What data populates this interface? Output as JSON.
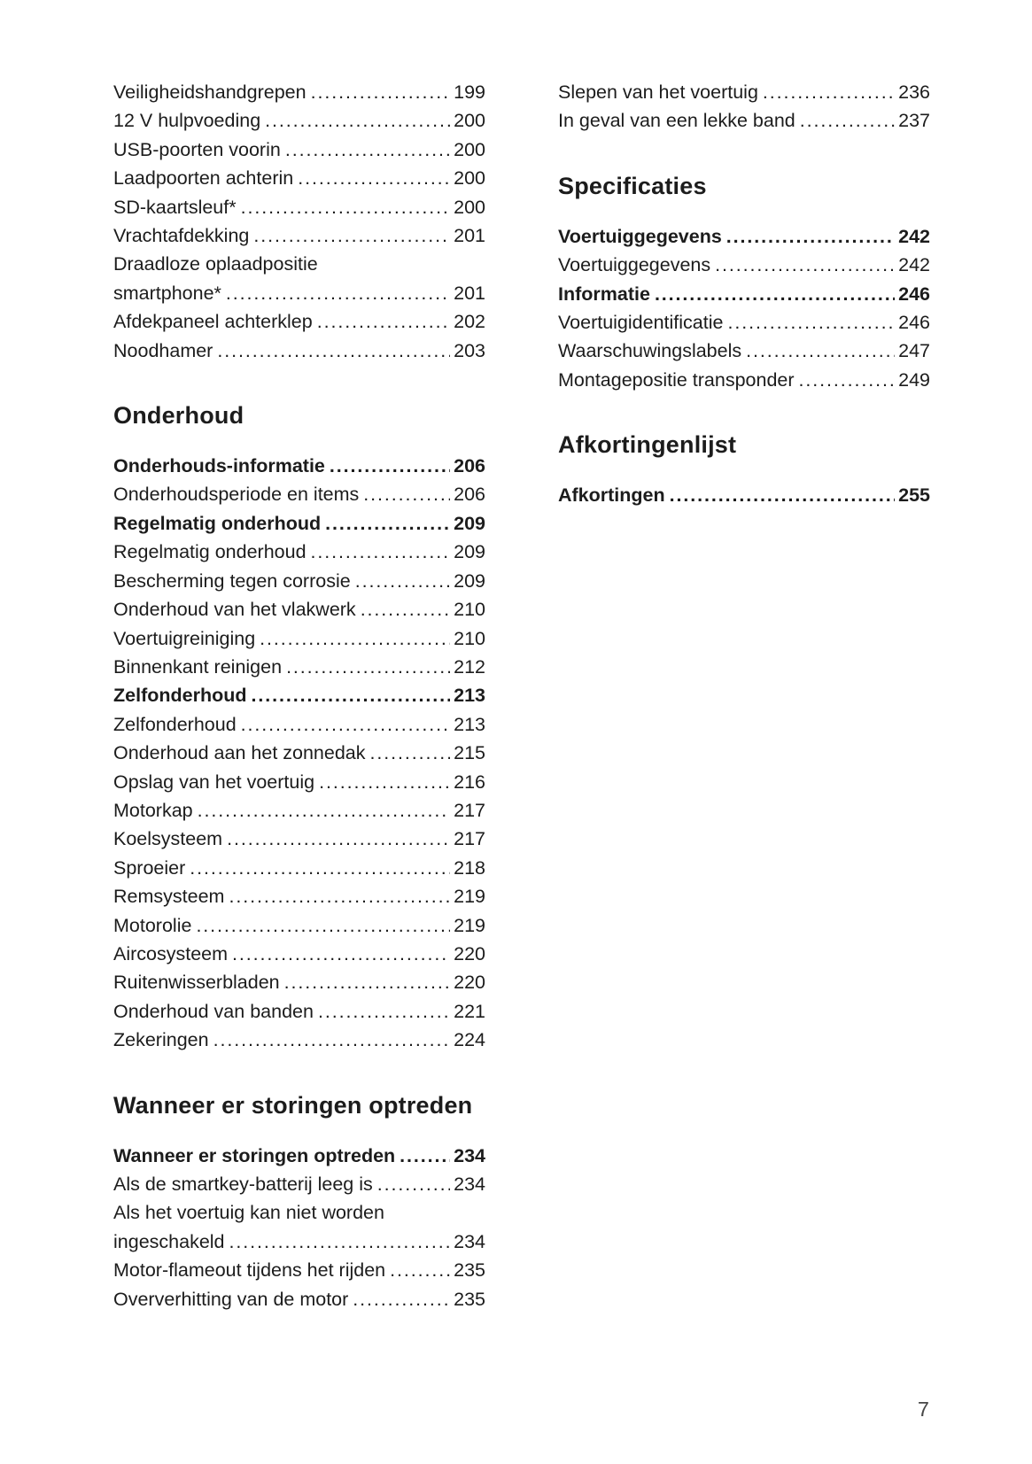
{
  "page": {
    "number": "7"
  },
  "columns": {
    "left": {
      "sections": [
        {
          "heading": null,
          "items": [
            {
              "label": "Veiligheidshandgrepen",
              "page": "199"
            },
            {
              "label": "12 V hulpvoeding",
              "page": "200"
            },
            {
              "label": "USB-poorten voorin",
              "page": "200"
            },
            {
              "label": "Laadpoorten achterin",
              "page": "200"
            },
            {
              "label": "SD-kaartsleuf*",
              "page": "200"
            },
            {
              "label": "Vrachtafdekking",
              "page": "201"
            },
            {
              "wrap": "Draadloze oplaadpositie",
              "label": "smartphone*",
              "page": "201"
            },
            {
              "label": "Afdekpaneel achterklep",
              "page": "202"
            },
            {
              "label": "Noodhamer",
              "page": "203"
            }
          ]
        },
        {
          "heading": "Onderhoud",
          "items": [
            {
              "label": "Onderhouds-informatie",
              "page": "206",
              "bold": true
            },
            {
              "label": "Onderhoudsperiode en items",
              "page": "206"
            },
            {
              "label": "Regelmatig onderhoud",
              "page": "209",
              "bold": true
            },
            {
              "label": "Regelmatig onderhoud",
              "page": "209"
            },
            {
              "label": "Bescherming tegen corrosie",
              "page": "209"
            },
            {
              "label": "Onderhoud van het vlakwerk",
              "page": "210"
            },
            {
              "label": "Voertuigreiniging",
              "page": "210"
            },
            {
              "label": "Binnenkant reinigen",
              "page": "212"
            },
            {
              "label": "Zelfonderhoud",
              "page": "213",
              "bold": true
            },
            {
              "label": "Zelfonderhoud",
              "page": "213"
            },
            {
              "label": "Onderhoud aan het zonnedak",
              "page": "215"
            },
            {
              "label": "Opslag van het voertuig",
              "page": "216"
            },
            {
              "label": "Motorkap",
              "page": "217"
            },
            {
              "label": "Koelsysteem",
              "page": "217"
            },
            {
              "label": "Sproeier",
              "page": "218"
            },
            {
              "label": "Remsysteem",
              "page": "219"
            },
            {
              "label": "Motorolie",
              "page": "219"
            },
            {
              "label": "Aircosysteem",
              "page": "220"
            },
            {
              "label": "Ruitenwisserbladen",
              "page": "220"
            },
            {
              "label": "Onderhoud van banden",
              "page": "221"
            },
            {
              "label": "Zekeringen",
              "page": "224"
            }
          ]
        },
        {
          "heading": "Wanneer er storingen optreden",
          "items": [
            {
              "label": "Wanneer er storingen optreden",
              "page": "234",
              "bold": true
            },
            {
              "label": "Als de smartkey-batterij leeg is",
              "page": "234"
            },
            {
              "wrap": "Als het voertuig kan niet worden",
              "label": "ingeschakeld",
              "page": "234"
            },
            {
              "label": "Motor-flameout tijdens het rijden",
              "page": "235"
            },
            {
              "label": "Oververhitting van de motor",
              "page": "235"
            }
          ]
        }
      ]
    },
    "right": {
      "sections": [
        {
          "heading": null,
          "items": [
            {
              "label": "Slepen van het voertuig",
              "page": "236"
            },
            {
              "label": "In geval van een lekke band",
              "page": "237"
            }
          ]
        },
        {
          "heading": "Specificaties",
          "items": [
            {
              "label": "Voertuiggegevens",
              "page": "242",
              "bold": true
            },
            {
              "label": "Voertuiggegevens",
              "page": "242"
            },
            {
              "label": "Informatie",
              "page": "246",
              "bold": true
            },
            {
              "label": "Voertuigidentificatie",
              "page": "246"
            },
            {
              "label": "Waarschuwingslabels",
              "page": "247"
            },
            {
              "label": "Montagepositie transponder",
              "page": "249"
            }
          ]
        },
        {
          "heading": "Afkortingenlijst",
          "items": [
            {
              "label": "Afkortingen",
              "page": "255",
              "bold": true
            }
          ]
        }
      ]
    }
  }
}
